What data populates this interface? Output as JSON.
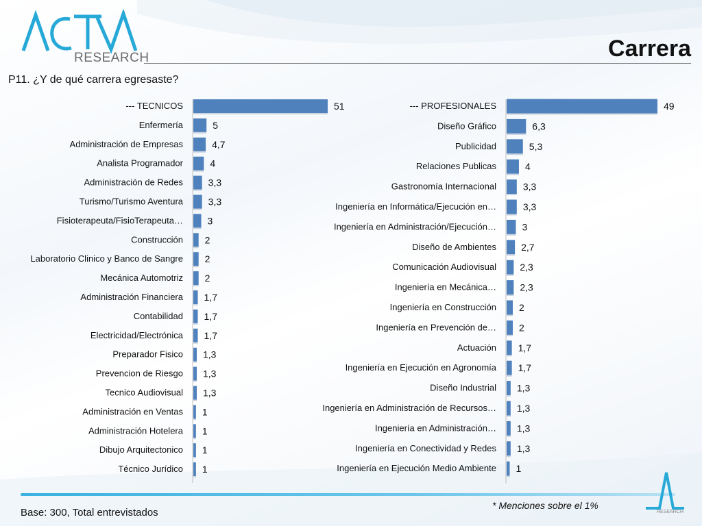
{
  "header": {
    "logo_text": "ACTIVA",
    "logo_sub": "RESEARCH",
    "title": "Carrera",
    "question": "P11. ¿Y de qué carrera egresaste?"
  },
  "footer": {
    "footnote": "* Menciones sobre el 1%",
    "base": "Base: 300, Total entrevistados",
    "corner_text": "RESEARCH"
  },
  "colors": {
    "bar": "#4f81bd",
    "accent": "#3ab2e0"
  },
  "chart_data": [
    {
      "type": "bar",
      "orientation": "horizontal",
      "categories": [
        "--- TECNICOS",
        "Enfermería",
        "Administración de Empresas",
        "Analista Programador",
        "Administración de Redes",
        "Turismo/Turismo Aventura",
        "Fisioterapeuta/FisioTerapeuta…",
        "Construcción",
        "Laboratorio Clinico y Banco de Sangre",
        "Mecánica Automotriz",
        "Administración Financiera",
        "Contabilidad",
        "Electricidad/Electrónica",
        "Preparador Fisico",
        "Prevencion de Riesgo",
        "Tecnico Audiovisual",
        "Administración en Ventas",
        "Administración Hotelera",
        "Dibujo Arquitectonico",
        "Técnico Jurídico"
      ],
      "values": [
        51,
        5,
        4.7,
        4,
        3.3,
        3.3,
        3,
        2,
        2,
        2,
        1.7,
        1.7,
        1.7,
        1.3,
        1.3,
        1.3,
        1,
        1,
        1,
        1
      ],
      "value_labels": [
        "51",
        "5",
        "4,7",
        "4",
        "3,3",
        "3,3",
        "3",
        "2",
        "2",
        "2",
        "1,7",
        "1,7",
        "1,7",
        "1,3",
        "1,3",
        "1,3",
        "1",
        "1",
        "1",
        "1"
      ],
      "xlim": [
        0,
        51
      ]
    },
    {
      "type": "bar",
      "orientation": "horizontal",
      "categories": [
        "--- PROFESIONALES",
        "Diseño Gráfico",
        "Publicidad",
        "Relaciones Publicas",
        "Gastronomía  Internacional",
        "Ingeniería en Informática/Ejecución en…",
        "Ingeniería en Administración/Ejecución…",
        "Diseño de Ambientes",
        "Comunicación Audiovisual",
        "Ingeniería en Mecánica…",
        "Ingeniería en Construcción",
        "Ingeniería en Prevención de…",
        "Actuación",
        "Ingeniería en Ejecución en Agronomía",
        "Diseño Industrial",
        "Ingeniería en Administración de Recursos…",
        "Ingeniería en Administración…",
        "Ingeniería en Conectividad y Redes",
        "Ingeniería en Ejecución Medio Ambiente"
      ],
      "values": [
        49,
        6.3,
        5.3,
        4,
        3.3,
        3.3,
        3,
        2.7,
        2.3,
        2.3,
        2,
        2,
        1.7,
        1.7,
        1.3,
        1.3,
        1.3,
        1.3,
        1
      ],
      "value_labels": [
        "49",
        "6,3",
        "5,3",
        "4",
        "3,3",
        "3,3",
        "3",
        "2,7",
        "2,3",
        "2,3",
        "2",
        "2",
        "1,7",
        "1,7",
        "1,3",
        "1,3",
        "1,3",
        "1,3",
        "1"
      ],
      "xlim": [
        0,
        49
      ]
    }
  ]
}
